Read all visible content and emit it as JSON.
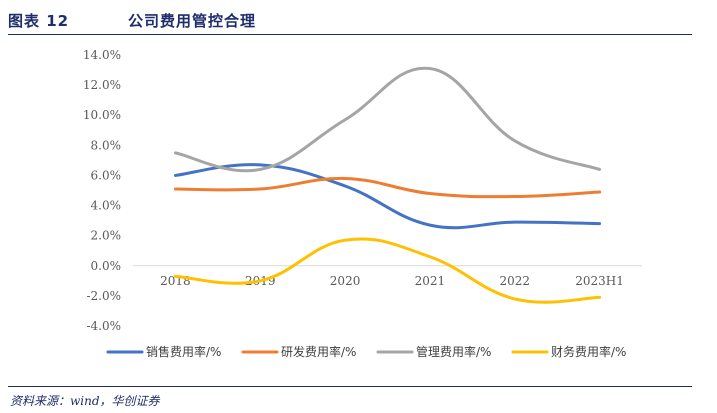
{
  "header": {
    "figure_label": "图表 12",
    "title": "公司费用管控合理"
  },
  "source": "资料来源：wind，华创证券",
  "chart_data": {
    "type": "line",
    "title": "公司费用管控合理",
    "categories": [
      "2018",
      "2019",
      "2020",
      "2021",
      "2022",
      "2023H1"
    ],
    "ylim": [
      -4.0,
      14.0
    ],
    "yticks": [
      -4.0,
      -2.0,
      0.0,
      2.0,
      4.0,
      6.0,
      8.0,
      10.0,
      12.0,
      14.0
    ],
    "ytick_labels": [
      "-4.0%",
      "-2.0%",
      "0.0%",
      "2.0%",
      "4.0%",
      "6.0%",
      "8.0%",
      "10.0%",
      "12.0%",
      "14.0%"
    ],
    "grid": false,
    "legend_position": "bottom",
    "series": [
      {
        "name": "销售费用率/%",
        "color": "#4472C4",
        "values": [
          6.0,
          6.7,
          5.3,
          2.7,
          2.9,
          2.8
        ]
      },
      {
        "name": "研发费用率/%",
        "color": "#ED7D31",
        "values": [
          5.1,
          5.1,
          5.8,
          4.8,
          4.6,
          4.9
        ]
      },
      {
        "name": "管理费用率/%",
        "color": "#A5A5A5",
        "values": [
          7.5,
          6.4,
          9.7,
          13.1,
          8.3,
          6.4
        ]
      },
      {
        "name": "财务费用率/%",
        "color": "#FFC000",
        "values": [
          -0.7,
          -1.0,
          1.7,
          0.6,
          -2.2,
          -2.1
        ]
      }
    ]
  }
}
